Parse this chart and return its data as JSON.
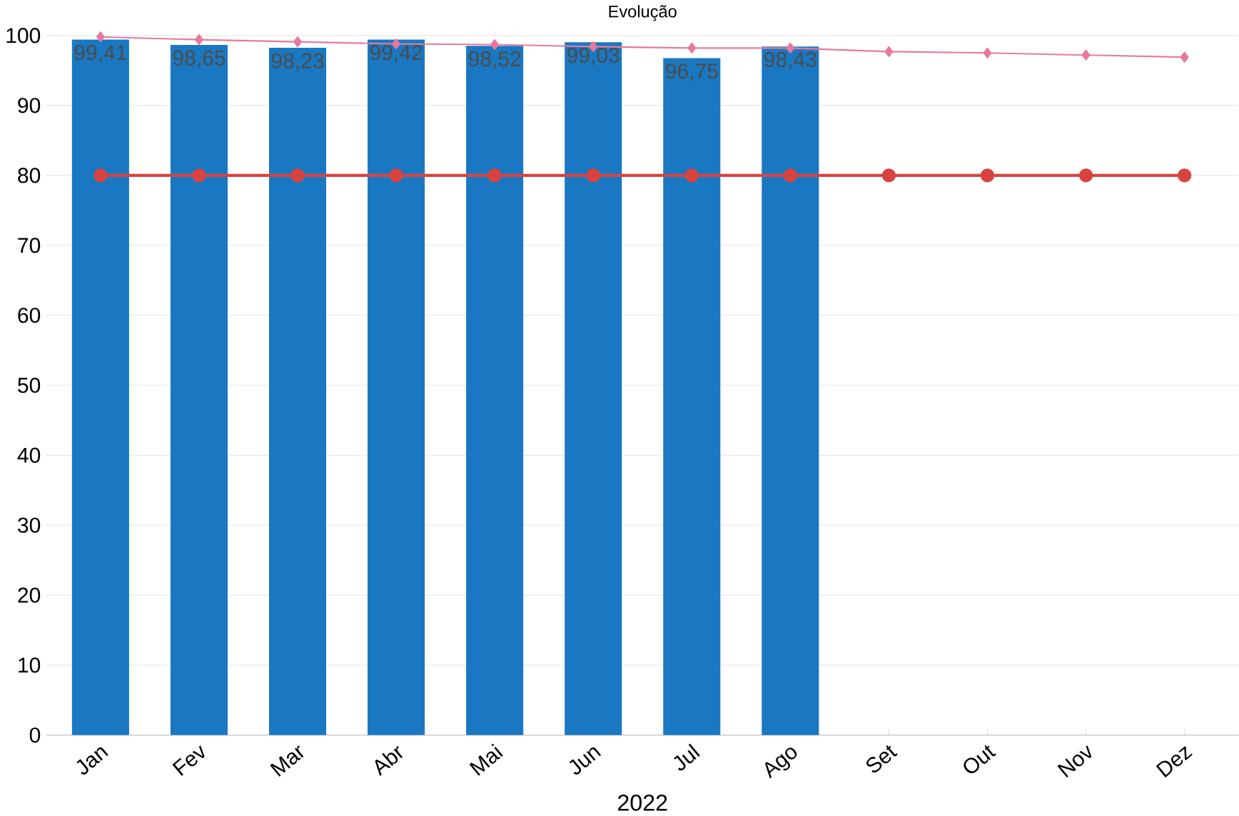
{
  "chart_data": {
    "type": "bar",
    "title": "Evolução",
    "xlabel": "2022",
    "categories": [
      "Jan",
      "Fev",
      "Mar",
      "Abr",
      "Mai",
      "Jun",
      "Jul",
      "Ago",
      "Set",
      "Out",
      "Nov",
      "Dez"
    ],
    "ylim": [
      0,
      100
    ],
    "yticks": [
      0,
      10,
      20,
      30,
      40,
      50,
      60,
      70,
      80,
      90,
      100
    ],
    "grid": "y",
    "series": [
      {
        "color": "#1a78c2",
        "values": [
          99.41,
          98.65,
          98.23,
          99.42,
          98.52,
          99.03,
          96.75,
          98.43,
          null,
          null,
          null,
          null
        ],
        "value_labels": [
          "99,41",
          "98,65",
          "98,23",
          "99,42",
          "98,52",
          "99,03",
          "96,75",
          "98,43",
          null,
          null,
          null,
          null
        ]
      },
      {
        "type": "line",
        "color": "#e8799e",
        "marker": "diamond",
        "values": [
          99.8,
          99.4,
          99.1,
          98.8,
          98.7,
          98.4,
          98.2,
          98.2,
          97.7,
          97.5,
          97.2,
          96.9
        ]
      },
      {
        "type": "line",
        "color": "#d9433f",
        "marker": "circle",
        "values": [
          80,
          80,
          80,
          80,
          80,
          80,
          80,
          80,
          80,
          80,
          80,
          80
        ]
      }
    ]
  }
}
